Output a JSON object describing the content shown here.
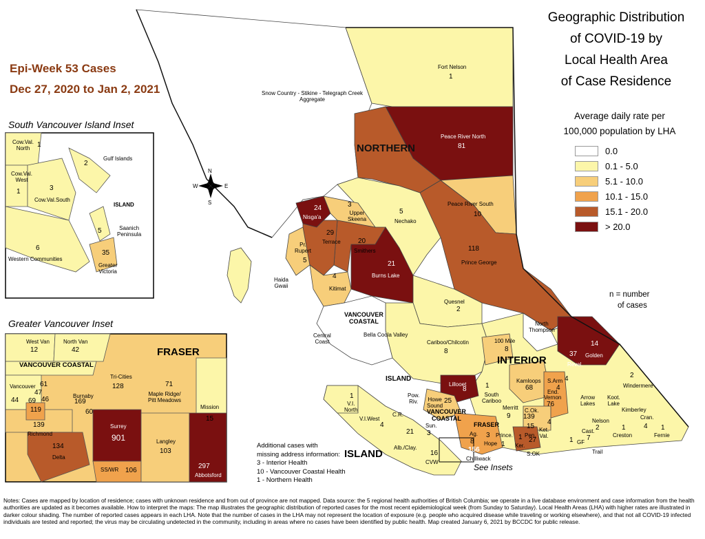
{
  "epi_week": {
    "line1": "Epi-Week 53 Cases",
    "line2": "Dec 27, 2020 to Jan 2, 2021"
  },
  "title": {
    "line1": "Geographic Distribution",
    "line2": "of COVID-19 by",
    "line3": "Local Health Area",
    "line4": "of Case Residence"
  },
  "legend": {
    "title1": "Average daily rate per",
    "title2": "100,000 population by LHA",
    "items": [
      {
        "label": "0.0",
        "color": "#ffffff"
      },
      {
        "label": "0.1 - 5.0",
        "color": "#fcf6a9"
      },
      {
        "label": "5.1 - 10.0",
        "color": "#f7ce7a"
      },
      {
        "label": "10.1 - 15.0",
        "color": "#f0a24c"
      },
      {
        "label": "15.1 - 20.0",
        "color": "#b85a2a"
      },
      {
        "label": "> 20.0",
        "color": "#7a1010"
      }
    ],
    "n_note1": "n = number",
    "n_note2": "of cases"
  },
  "insets": {
    "south_vi": "South Vancouver Island Inset",
    "greater_van": "Greater Vancouver Inset",
    "see_insets": "See Insets"
  },
  "compass": {
    "n": "N",
    "s": "S",
    "e": "E",
    "w": "W"
  },
  "regions": {
    "northern": "NORTHERN",
    "interior": "INTERIOR",
    "vancouver_coastal": "VANCOUVER\nCOASTAL",
    "island": "ISLAND",
    "island_main": "ISLAND",
    "fraser": "FRASER",
    "fraser_inset": "FRASER",
    "vc_inset": "VANCOUVER COASTAL",
    "vc_main": "VANCOUVER\nCOASTAL",
    "fraser_main": "FRASER",
    "island_inset": "ISLAND"
  },
  "lhas": [
    {
      "name": "Fort Nelson",
      "n": "1"
    },
    {
      "name": "Snow Country - Stikine - Telegraph Creek\nAggregate",
      "n": ""
    },
    {
      "name": "Peace River North",
      "n": "81"
    },
    {
      "name": "Peace River South",
      "n": "10"
    },
    {
      "name": "Nisga'a",
      "n": "24"
    },
    {
      "name": "Upper\nSkeena",
      "n": "3"
    },
    {
      "name": "Nechako",
      "n": "5"
    },
    {
      "name": "Terrace",
      "n": "29"
    },
    {
      "name": "Smithers",
      "n": "20"
    },
    {
      "name": "Burns Lake",
      "n": "21"
    },
    {
      "name": "Prince George",
      "n": "118"
    },
    {
      "name": "Pr.\nRupert",
      "n": "5"
    },
    {
      "name": "Kitimat",
      "n": "4"
    },
    {
      "name": "Haida\nGwaii",
      "n": ""
    },
    {
      "name": "Quesnel",
      "n": "2"
    },
    {
      "name": "Central\nCoast",
      "n": ""
    },
    {
      "name": "Bella Coola Valley",
      "n": ""
    },
    {
      "name": "Cariboo/Chilcotin",
      "n": "8"
    },
    {
      "name": "North\nThompson",
      "n": ""
    },
    {
      "name": "100 Mile",
      "n": "8"
    },
    {
      "name": "Golden",
      "n": "14"
    },
    {
      "name": "Revel.",
      "n": "37"
    },
    {
      "name": "Windermere",
      "n": "2"
    },
    {
      "name": "Lillooet",
      "n": "8"
    },
    {
      "name": "Kamloops",
      "n": "68"
    },
    {
      "name": "Vernon",
      "n": "76"
    },
    {
      "name": "S.Arm",
      "n": "4"
    },
    {
      "name": "End.",
      "n": "4"
    },
    {
      "name": "C.Ok.",
      "n": "139"
    },
    {
      "name": "Merritt",
      "n": "9"
    },
    {
      "name": "South\nCariboo",
      "n": "1"
    },
    {
      "name": "Arrow\nLakes",
      "n": ""
    },
    {
      "name": "Koot.\nLake",
      "n": ""
    },
    {
      "name": "Kimberley",
      "n": ""
    },
    {
      "name": "Nelson",
      "n": "2"
    },
    {
      "name": "Cast.",
      "n": "7"
    },
    {
      "name": "Creston",
      "n": "1"
    },
    {
      "name": "Cran.",
      "n": "4"
    },
    {
      "name": "Fernie",
      "n": "1"
    },
    {
      "name": "Trail",
      "n": ""
    },
    {
      "name": "GF",
      "n": "1"
    },
    {
      "name": "Ket.\nVal.",
      "n": "4"
    },
    {
      "name": "S.OK",
      "n": "27"
    },
    {
      "name": "Pen.",
      "n": "15"
    },
    {
      "name": "Ker.",
      "n": "1"
    },
    {
      "name": "Prince.",
      "n": "1"
    },
    {
      "name": "Hope",
      "n": "3"
    },
    {
      "name": "Chilliwack",
      "n": "156"
    },
    {
      "name": "Ag.",
      "n": "8"
    },
    {
      "name": "Howe\nSound",
      "n": "25"
    },
    {
      "name": "Sun.",
      "n": "3"
    },
    {
      "name": "Pow.\nRiv.",
      "n": ""
    },
    {
      "name": "V.I.\nNorth",
      "n": "1"
    },
    {
      "name": "V.I.West",
      "n": ""
    },
    {
      "name": "C.R.",
      "n": "4"
    },
    {
      "name": "Alb./Clay.",
      "n": ""
    },
    {
      "name": "CVW",
      "n": "16"
    },
    {
      "name": "Nan",
      "n": "21"
    }
  ],
  "south_vi_inset": [
    {
      "name": "Cow.Val.\nNorth",
      "n": "1"
    },
    {
      "name": "Gulf Islands",
      "n": "2"
    },
    {
      "name": "Cow.Val.\nWest",
      "n": "1"
    },
    {
      "name": "Cow.Val.South",
      "n": "3"
    },
    {
      "name": "Saanich\nPeninsula",
      "n": "5"
    },
    {
      "name": "Western Communities",
      "n": "6"
    },
    {
      "name": "Greater\nVictoria",
      "n": "35"
    }
  ],
  "greater_van_inset": [
    {
      "name": "West Van",
      "n": "12"
    },
    {
      "name": "North Van",
      "n": "42"
    },
    {
      "name": "Vancouver",
      "n": "61"
    },
    {
      "name": "Tri-Cities",
      "n": "128"
    },
    {
      "name": "Maple Ridge/\nPitt Meadows",
      "n": "71"
    },
    {
      "name": "Mission",
      "n": "15"
    },
    {
      "name": "Burnaby",
      "n": "169"
    },
    {
      "name": "Richmond",
      "n": "139"
    },
    {
      "name": "Surrey",
      "n": "901"
    },
    {
      "name": "Langley",
      "n": "103"
    },
    {
      "name": "Delta",
      "n": "134"
    },
    {
      "name": "SS/WR",
      "n": "106"
    },
    {
      "name": "Abbotsford",
      "n": "297"
    },
    {
      "name": "NW",
      "n": "60"
    },
    {
      "name": "",
      "n": "119"
    },
    {
      "name": "",
      "n": "47"
    },
    {
      "name": "",
      "n": "69"
    },
    {
      "name": "",
      "n": "46"
    },
    {
      "name": "",
      "n": "44"
    }
  ],
  "additional": {
    "l1": "Additional cases with",
    "l2": "missing address information:",
    "l3": "3 - Interior Health",
    "l4": "10 - Vancouver Coastal Health",
    "l5": "1 - Northern Health"
  },
  "notes": "Notes: Cases are mapped by location of residence; cases with unknown residence and from out of province are not mapped. Data source: the 5 regional health authorities of British Columbia; we operate in a live database environment and case information from the health authorities are updated as it becomes available. How to interpret the maps: The map illustrates the geographic distribution of reported cases for the most recent epidemiological week (from Sunday to Saturday). Local Health Areas (LHA) with higher rates are illustrated in darker colour shading. The number of reported cases appears in each LHA. Note that the number of cases in the LHA may not represent the location of exposure (e.g. people who acquired disease while traveling or working elsewhere), and that not all COVID-19 infected individuals are tested and reported; the virus may be circulating undetected in the community, including in areas where no cases have been identified by public health. Map created January 6, 2021 by BCCDC for public release."
}
